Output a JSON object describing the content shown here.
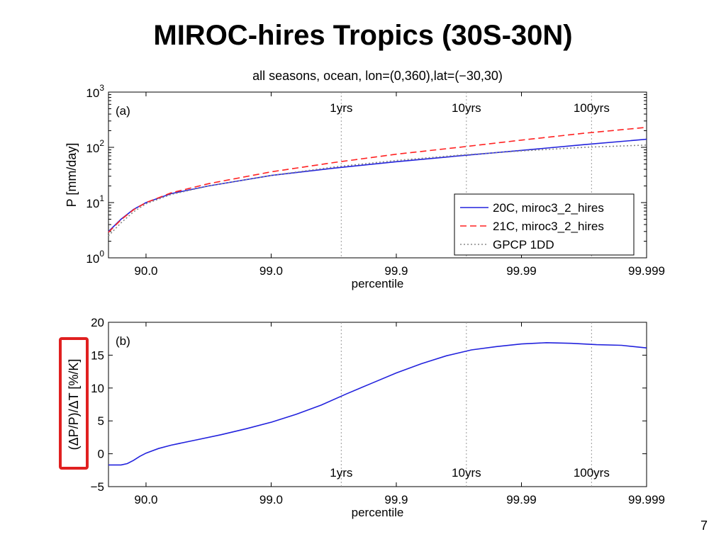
{
  "slide": {
    "title": "MIROC-hires Tropics (30S-30N)",
    "page_number": "7"
  },
  "chart_data": [
    {
      "type": "line",
      "panel_label": "(a)",
      "title": "all seasons, ocean, lon=(0,360),lat=(−30,30)",
      "xlabel": "percentile",
      "ylabel": "P [mm/day]",
      "x_scale": "-log10(1-p/100)",
      "xlim": [
        0.7,
        5
      ],
      "x_ticks": [
        {
          "pos": 1,
          "label": "90.0"
        },
        {
          "pos": 2,
          "label": "99.0"
        },
        {
          "pos": 3,
          "label": "99.9"
        },
        {
          "pos": 4,
          "label": "99.99"
        },
        {
          "pos": 5,
          "label": "99.999"
        }
      ],
      "y_scale": "log",
      "ylim": [
        1,
        1000
      ],
      "y_ticks": [
        {
          "value": 1,
          "base": "10",
          "exp": "0"
        },
        {
          "value": 10,
          "base": "10",
          "exp": "1"
        },
        {
          "value": 100,
          "base": "10",
          "exp": "2"
        },
        {
          "value": 1000,
          "base": "10",
          "exp": "3"
        }
      ],
      "return_periods": [
        {
          "pos": 2.56,
          "label": "1yrs"
        },
        {
          "pos": 3.56,
          "label": "10yrs"
        },
        {
          "pos": 4.56,
          "label": "100yrs"
        }
      ],
      "legend": {
        "position": "bottom-right"
      },
      "series": [
        {
          "name": "20C, miroc3_2_hires",
          "color": "#2222dd",
          "dash": "solid",
          "x": [
            0.7,
            0.8,
            0.9,
            1.0,
            1.2,
            1.5,
            2.0,
            2.5,
            3.0,
            3.5,
            4.0,
            4.5,
            5.0
          ],
          "y": [
            3.0,
            5.0,
            7.5,
            10,
            14.5,
            20,
            31,
            42,
            55,
            70,
            88,
            112,
            140
          ]
        },
        {
          "name": "21C, miroc3_2_hires",
          "color": "#ff2222",
          "dash": "dashed",
          "x": [
            0.7,
            0.8,
            0.9,
            1.0,
            1.2,
            1.5,
            2.0,
            2.5,
            3.0,
            3.5,
            4.0,
            4.5,
            5.0
          ],
          "y": [
            2.9,
            4.9,
            7.4,
            10,
            15,
            22,
            36,
            53,
            75,
            100,
            135,
            180,
            230
          ]
        },
        {
          "name": "GPCP 1DD",
          "color": "#888888",
          "dash": "dotted",
          "x": [
            0.7,
            0.8,
            0.9,
            1.0,
            1.2,
            1.5,
            2.0,
            2.5,
            3.0,
            3.5,
            4.0,
            4.5,
            5.0
          ],
          "y": [
            2.5,
            4.3,
            6.8,
            9.5,
            14,
            20,
            31,
            44,
            58,
            72,
            86,
            100,
            110
          ]
        }
      ]
    },
    {
      "type": "line",
      "panel_label": "(b)",
      "xlabel": "percentile",
      "ylabel": "(ΔP/P)/ΔT [%/K]",
      "x_scale": "-log10(1-p/100)",
      "xlim": [
        0.7,
        5
      ],
      "x_ticks": [
        {
          "pos": 1,
          "label": "90.0"
        },
        {
          "pos": 2,
          "label": "99.0"
        },
        {
          "pos": 3,
          "label": "99.9"
        },
        {
          "pos": 4,
          "label": "99.99"
        },
        {
          "pos": 5,
          "label": "99.999"
        }
      ],
      "ylim": [
        -5,
        20
      ],
      "y_ticks": [
        {
          "value": -5,
          "label": "−5"
        },
        {
          "value": 0,
          "label": "0"
        },
        {
          "value": 5,
          "label": "5"
        },
        {
          "value": 10,
          "label": "10"
        },
        {
          "value": 15,
          "label": "15"
        },
        {
          "value": 20,
          "label": "20"
        }
      ],
      "return_periods": [
        {
          "pos": 2.56,
          "label": "1yrs"
        },
        {
          "pos": 3.56,
          "label": "10yrs"
        },
        {
          "pos": 4.56,
          "label": "100yrs"
        }
      ],
      "ylabel_highlight_color": "#e02020",
      "series": [
        {
          "color": "#2222dd",
          "dash": "solid",
          "x": [
            0.7,
            0.8,
            0.85,
            0.9,
            0.95,
            1.0,
            1.1,
            1.2,
            1.4,
            1.6,
            1.8,
            2.0,
            2.2,
            2.4,
            2.6,
            2.8,
            3.0,
            3.2,
            3.4,
            3.6,
            3.8,
            4.0,
            4.2,
            4.4,
            4.6,
            4.8,
            5.0
          ],
          "y": [
            -1.7,
            -1.7,
            -1.5,
            -1.0,
            -0.4,
            0.1,
            0.8,
            1.3,
            2.1,
            2.9,
            3.8,
            4.8,
            6.0,
            7.4,
            9.1,
            10.7,
            12.3,
            13.7,
            14.9,
            15.8,
            16.3,
            16.7,
            16.9,
            16.8,
            16.6,
            16.5,
            16.1
          ]
        }
      ]
    }
  ]
}
